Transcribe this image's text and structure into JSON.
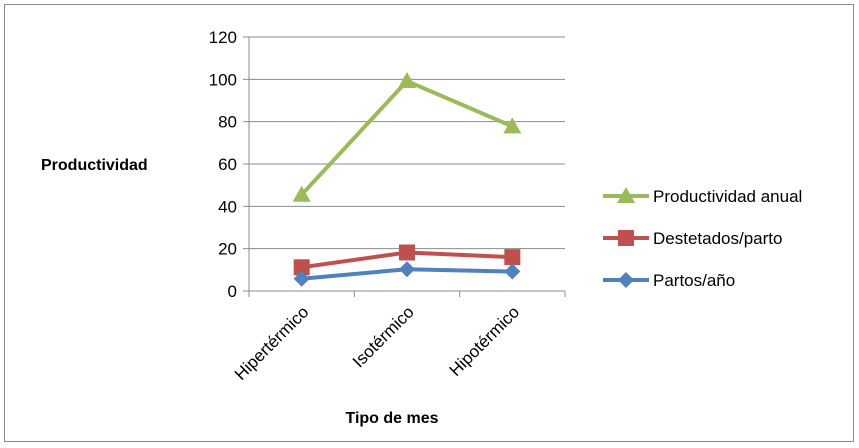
{
  "chart_data": {
    "type": "line",
    "categories": [
      "Hipertérmico",
      "Isotérmico",
      "Hipotérmico"
    ],
    "series": [
      {
        "name": "Productividad anual",
        "values": [
          45.5,
          99.2,
          77.8
        ],
        "color": "#9BBB59",
        "marker": "triangle"
      },
      {
        "name": "Destetados/parto",
        "values": [
          11.2,
          18.2,
          16.0
        ],
        "color": "#C0504D",
        "marker": "square"
      },
      {
        "name": "Partos/año",
        "values": [
          5.8,
          10.3,
          9.2
        ],
        "color": "#4F81BD",
        "marker": "diamond"
      }
    ],
    "xlabel": "Tipo de mes",
    "ylabel": "Productividad",
    "ylim": [
      0,
      120
    ],
    "yticks": [
      "0",
      "20",
      "40",
      "60",
      "80",
      "100",
      "120"
    ],
    "grid": true,
    "legend_position": "right"
  }
}
